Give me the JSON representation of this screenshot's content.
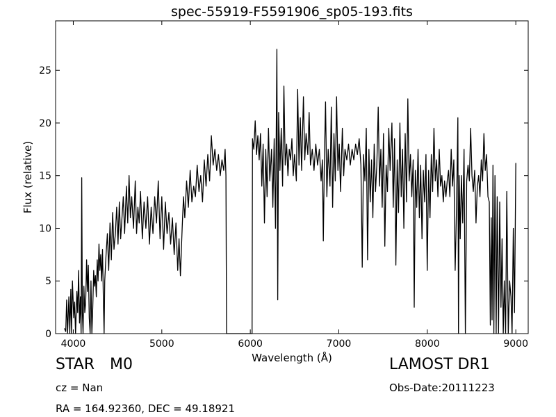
{
  "chart_data": {
    "type": "line",
    "title": "spec-55919-F5591906_sp05-193.fits",
    "xlabel": "Wavelength (Å)",
    "ylabel": "Flux (relative)",
    "xlim": [
      3800,
      9140
    ],
    "ylim": [
      0,
      29.7
    ],
    "xticks": [
      4000,
      5000,
      6000,
      7000,
      8000,
      9000
    ],
    "yticks": [
      0,
      5,
      10,
      15,
      20,
      25
    ],
    "grid": false,
    "series_color": "#000000",
    "points": [
      [
        3900,
        0.5
      ],
      [
        3915,
        0.2
      ],
      [
        3925,
        3.2
      ],
      [
        3935,
        0.0
      ],
      [
        3950,
        3.5
      ],
      [
        3960,
        0.0
      ],
      [
        3972,
        4.2
      ],
      [
        3980,
        0.0
      ],
      [
        3990,
        5.0
      ],
      [
        4005,
        1.5
      ],
      [
        4015,
        3.0
      ],
      [
        4025,
        0.0
      ],
      [
        4040,
        4.0
      ],
      [
        4050,
        2.0
      ],
      [
        4060,
        6.0
      ],
      [
        4070,
        1.0
      ],
      [
        4080,
        3.5
      ],
      [
        4088,
        0.0
      ],
      [
        4095,
        14.8
      ],
      [
        4102,
        2.0
      ],
      [
        4110,
        0.0
      ],
      [
        4120,
        4.5
      ],
      [
        4130,
        2.0
      ],
      [
        4140,
        3.0
      ],
      [
        4150,
        7.0
      ],
      [
        4160,
        4.0
      ],
      [
        4170,
        6.5
      ],
      [
        4180,
        1.5
      ],
      [
        4190,
        0.0
      ],
      [
        4200,
        5.0
      ],
      [
        4210,
        0.0
      ],
      [
        4220,
        2.5
      ],
      [
        4230,
        6.0
      ],
      [
        4240,
        4.5
      ],
      [
        4250,
        5.5
      ],
      [
        4260,
        3.5
      ],
      [
        4270,
        7.0
      ],
      [
        4280,
        5.0
      ],
      [
        4290,
        8.5
      ],
      [
        4300,
        6.0
      ],
      [
        4310,
        7.5
      ],
      [
        4320,
        5.0
      ],
      [
        4330,
        8.0
      ],
      [
        4340,
        3.0
      ],
      [
        4348,
        0.0
      ],
      [
        4355,
        5.0
      ],
      [
        4370,
        7.5
      ],
      [
        4385,
        9.5
      ],
      [
        4400,
        6.0
      ],
      [
        4415,
        10.5
      ],
      [
        4430,
        7.0
      ],
      [
        4445,
        11.5
      ],
      [
        4460,
        8.0
      ],
      [
        4475,
        9.5
      ],
      [
        4490,
        12.0
      ],
      [
        4505,
        8.5
      ],
      [
        4520,
        12.5
      ],
      [
        4535,
        9.0
      ],
      [
        4550,
        11.0
      ],
      [
        4565,
        13.0
      ],
      [
        4580,
        9.5
      ],
      [
        4600,
        14.0
      ],
      [
        4615,
        10.5
      ],
      [
        4630,
        15.0
      ],
      [
        4645,
        11.0
      ],
      [
        4660,
        13.0
      ],
      [
        4680,
        10.0
      ],
      [
        4700,
        14.5
      ],
      [
        4715,
        9.5
      ],
      [
        4730,
        12.0
      ],
      [
        4745,
        10.5
      ],
      [
        4760,
        13.5
      ],
      [
        4780,
        9.0
      ],
      [
        4800,
        12.5
      ],
      [
        4820,
        10.0
      ],
      [
        4840,
        13.0
      ],
      [
        4860,
        8.5
      ],
      [
        4880,
        12.0
      ],
      [
        4900,
        9.5
      ],
      [
        4920,
        13.0
      ],
      [
        4940,
        10.5
      ],
      [
        4960,
        14.5
      ],
      [
        4980,
        9.0
      ],
      [
        5000,
        13.0
      ],
      [
        5020,
        8.0
      ],
      [
        5040,
        12.5
      ],
      [
        5060,
        9.5
      ],
      [
        5080,
        11.5
      ],
      [
        5100,
        8.5
      ],
      [
        5120,
        11.0
      ],
      [
        5140,
        7.5
      ],
      [
        5160,
        10.5
      ],
      [
        5180,
        6.0
      ],
      [
        5195,
        9.0
      ],
      [
        5210,
        5.5
      ],
      [
        5230,
        10.0
      ],
      [
        5245,
        13.0
      ],
      [
        5260,
        11.0
      ],
      [
        5280,
        14.5
      ],
      [
        5300,
        12.0
      ],
      [
        5320,
        15.5
      ],
      [
        5340,
        12.5
      ],
      [
        5360,
        14.0
      ],
      [
        5380,
        13.0
      ],
      [
        5400,
        16.0
      ],
      [
        5420,
        13.5
      ],
      [
        5440,
        15.0
      ],
      [
        5460,
        12.5
      ],
      [
        5480,
        16.5
      ],
      [
        5500,
        14.0
      ],
      [
        5520,
        17.0
      ],
      [
        5540,
        14.5
      ],
      [
        5560,
        18.8
      ],
      [
        5580,
        16.0
      ],
      [
        5600,
        17.5
      ],
      [
        5620,
        15.5
      ],
      [
        5640,
        17.0
      ],
      [
        5660,
        15.0
      ],
      [
        5680,
        16.5
      ],
      [
        5700,
        15.5
      ],
      [
        5715,
        17.5
      ],
      [
        5725,
        15.0
      ],
      [
        5732,
        0.0
      ],
      [
        6020,
        0.0
      ],
      [
        6025,
        18.5
      ],
      [
        6040,
        17.5
      ],
      [
        6055,
        20.2
      ],
      [
        6070,
        17.0
      ],
      [
        6085,
        18.8
      ],
      [
        6100,
        16.5
      ],
      [
        6115,
        19.0
      ],
      [
        6130,
        14.0
      ],
      [
        6145,
        18.0
      ],
      [
        6160,
        10.5
      ],
      [
        6175,
        17.5
      ],
      [
        6190,
        13.0
      ],
      [
        6205,
        19.5
      ],
      [
        6220,
        14.5
      ],
      [
        6240,
        17.5
      ],
      [
        6255,
        12.0
      ],
      [
        6270,
        18.5
      ],
      [
        6285,
        10.0
      ],
      [
        6300,
        27.0
      ],
      [
        6310,
        3.2
      ],
      [
        6320,
        21.0
      ],
      [
        6335,
        15.5
      ],
      [
        6350,
        19.5
      ],
      [
        6365,
        14.0
      ],
      [
        6380,
        23.5
      ],
      [
        6395,
        16.0
      ],
      [
        6410,
        18.0
      ],
      [
        6425,
        15.0
      ],
      [
        6440,
        17.5
      ],
      [
        6455,
        16.5
      ],
      [
        6470,
        18.5
      ],
      [
        6485,
        15.0
      ],
      [
        6500,
        17.0
      ],
      [
        6520,
        14.5
      ],
      [
        6535,
        23.2
      ],
      [
        6550,
        16.0
      ],
      [
        6565,
        20.5
      ],
      [
        6580,
        15.5
      ],
      [
        6600,
        22.5
      ],
      [
        6615,
        16.5
      ],
      [
        6630,
        19.0
      ],
      [
        6650,
        17.0
      ],
      [
        6665,
        21.0
      ],
      [
        6680,
        16.0
      ],
      [
        6700,
        17.5
      ],
      [
        6720,
        15.5
      ],
      [
        6740,
        18.0
      ],
      [
        6760,
        16.0
      ],
      [
        6780,
        17.5
      ],
      [
        6800,
        14.5
      ],
      [
        6815,
        16.5
      ],
      [
        6825,
        8.8
      ],
      [
        6835,
        15.5
      ],
      [
        6850,
        22.0
      ],
      [
        6865,
        13.0
      ],
      [
        6880,
        17.5
      ],
      [
        6900,
        14.0
      ],
      [
        6915,
        21.5
      ],
      [
        6930,
        12.0
      ],
      [
        6945,
        19.0
      ],
      [
        6960,
        14.5
      ],
      [
        6975,
        22.5
      ],
      [
        6990,
        15.5
      ],
      [
        7005,
        18.0
      ],
      [
        7020,
        13.5
      ],
      [
        7040,
        19.5
      ],
      [
        7055,
        15.0
      ],
      [
        7070,
        17.5
      ],
      [
        7090,
        16.5
      ],
      [
        7110,
        18.0
      ],
      [
        7130,
        16.0
      ],
      [
        7150,
        17.5
      ],
      [
        7170,
        16.5
      ],
      [
        7190,
        18.0
      ],
      [
        7210,
        17.0
      ],
      [
        7230,
        18.5
      ],
      [
        7250,
        16.0
      ],
      [
        7265,
        6.3
      ],
      [
        7280,
        17.0
      ],
      [
        7295,
        14.5
      ],
      [
        7310,
        19.5
      ],
      [
        7325,
        7.0
      ],
      [
        7340,
        17.5
      ],
      [
        7355,
        12.5
      ],
      [
        7370,
        16.5
      ],
      [
        7385,
        11.0
      ],
      [
        7400,
        18.0
      ],
      [
        7415,
        13.5
      ],
      [
        7430,
        16.0
      ],
      [
        7445,
        21.5
      ],
      [
        7460,
        14.0
      ],
      [
        7475,
        17.5
      ],
      [
        7490,
        12.0
      ],
      [
        7505,
        19.0
      ],
      [
        7520,
        8.3
      ],
      [
        7535,
        16.0
      ],
      [
        7550,
        13.5
      ],
      [
        7565,
        19.5
      ],
      [
        7580,
        15.5
      ],
      [
        7600,
        20.0
      ],
      [
        7615,
        12.0
      ],
      [
        7630,
        18.5
      ],
      [
        7645,
        6.5
      ],
      [
        7660,
        16.5
      ],
      [
        7675,
        11.5
      ],
      [
        7690,
        20.0
      ],
      [
        7705,
        13.0
      ],
      [
        7720,
        17.5
      ],
      [
        7735,
        10.0
      ],
      [
        7750,
        19.0
      ],
      [
        7765,
        12.5
      ],
      [
        7780,
        22.3
      ],
      [
        7795,
        14.5
      ],
      [
        7810,
        17.0
      ],
      [
        7825,
        13.0
      ],
      [
        7840,
        16.5
      ],
      [
        7852,
        2.5
      ],
      [
        7865,
        15.5
      ],
      [
        7880,
        12.0
      ],
      [
        7895,
        17.5
      ],
      [
        7910,
        11.0
      ],
      [
        7925,
        16.0
      ],
      [
        7940,
        9.0
      ],
      [
        7955,
        15.5
      ],
      [
        7970,
        12.5
      ],
      [
        7985,
        17.0
      ],
      [
        7999,
        6.0
      ],
      [
        8015,
        15.5
      ],
      [
        8030,
        11.0
      ],
      [
        8045,
        17.0
      ],
      [
        8060,
        13.5
      ],
      [
        8075,
        19.5
      ],
      [
        8090,
        14.5
      ],
      [
        8105,
        16.5
      ],
      [
        8120,
        13.0
      ],
      [
        8135,
        17.5
      ],
      [
        8150,
        14.0
      ],
      [
        8165,
        15.0
      ],
      [
        8180,
        12.5
      ],
      [
        8195,
        14.5
      ],
      [
        8210,
        13.0
      ],
      [
        8225,
        14.5
      ],
      [
        8240,
        15.5
      ],
      [
        8255,
        13.0
      ],
      [
        8270,
        17.5
      ],
      [
        8285,
        14.0
      ],
      [
        8300,
        16.5
      ],
      [
        8315,
        6.0
      ],
      [
        8330,
        12.0
      ],
      [
        8345,
        20.5
      ],
      [
        8352,
        0.0
      ],
      [
        8360,
        15.0
      ],
      [
        8372,
        9.0
      ],
      [
        8385,
        15.0
      ],
      [
        8400,
        10.5
      ],
      [
        8415,
        17.5
      ],
      [
        8430,
        0.0
      ],
      [
        8445,
        14.5
      ],
      [
        8460,
        16.0
      ],
      [
        8475,
        14.5
      ],
      [
        8490,
        19.5
      ],
      [
        8505,
        15.0
      ],
      [
        8520,
        13.5
      ],
      [
        8535,
        15.5
      ],
      [
        8550,
        10.5
      ],
      [
        8565,
        14.0
      ],
      [
        8580,
        15.0
      ],
      [
        8595,
        13.0
      ],
      [
        8610,
        16.5
      ],
      [
        8625,
        14.5
      ],
      [
        8640,
        19.0
      ],
      [
        8655,
        15.5
      ],
      [
        8670,
        17.0
      ],
      [
        8685,
        13.0
      ],
      [
        8700,
        12.5
      ],
      [
        8712,
        0.8
      ],
      [
        8722,
        11.0
      ],
      [
        8732,
        1.3
      ],
      [
        8742,
        16.0
      ],
      [
        8752,
        0.0
      ],
      [
        8765,
        15.0
      ],
      [
        8778,
        0.0
      ],
      [
        8790,
        13.0
      ],
      [
        8805,
        0.0
      ],
      [
        8818,
        12.5
      ],
      [
        8832,
        2.5
      ],
      [
        8845,
        9.0
      ],
      [
        8858,
        0.0
      ],
      [
        8870,
        5.0
      ],
      [
        8885,
        0.0
      ],
      [
        8898,
        13.5
      ],
      [
        8915,
        0.0
      ],
      [
        8930,
        5.0
      ],
      [
        8945,
        3.5
      ],
      [
        8958,
        0.0
      ],
      [
        8972,
        10.0
      ],
      [
        8985,
        2.0
      ],
      [
        9000,
        16.2
      ]
    ]
  },
  "meta": {
    "class_label": "STAR",
    "subclass_label": "M0",
    "cz": "cz = Nan",
    "radec": "RA = 164.92360, DEC = 49.18921",
    "survey": "LAMOST DR1",
    "obs_date": "Obs-Date:20111223"
  }
}
